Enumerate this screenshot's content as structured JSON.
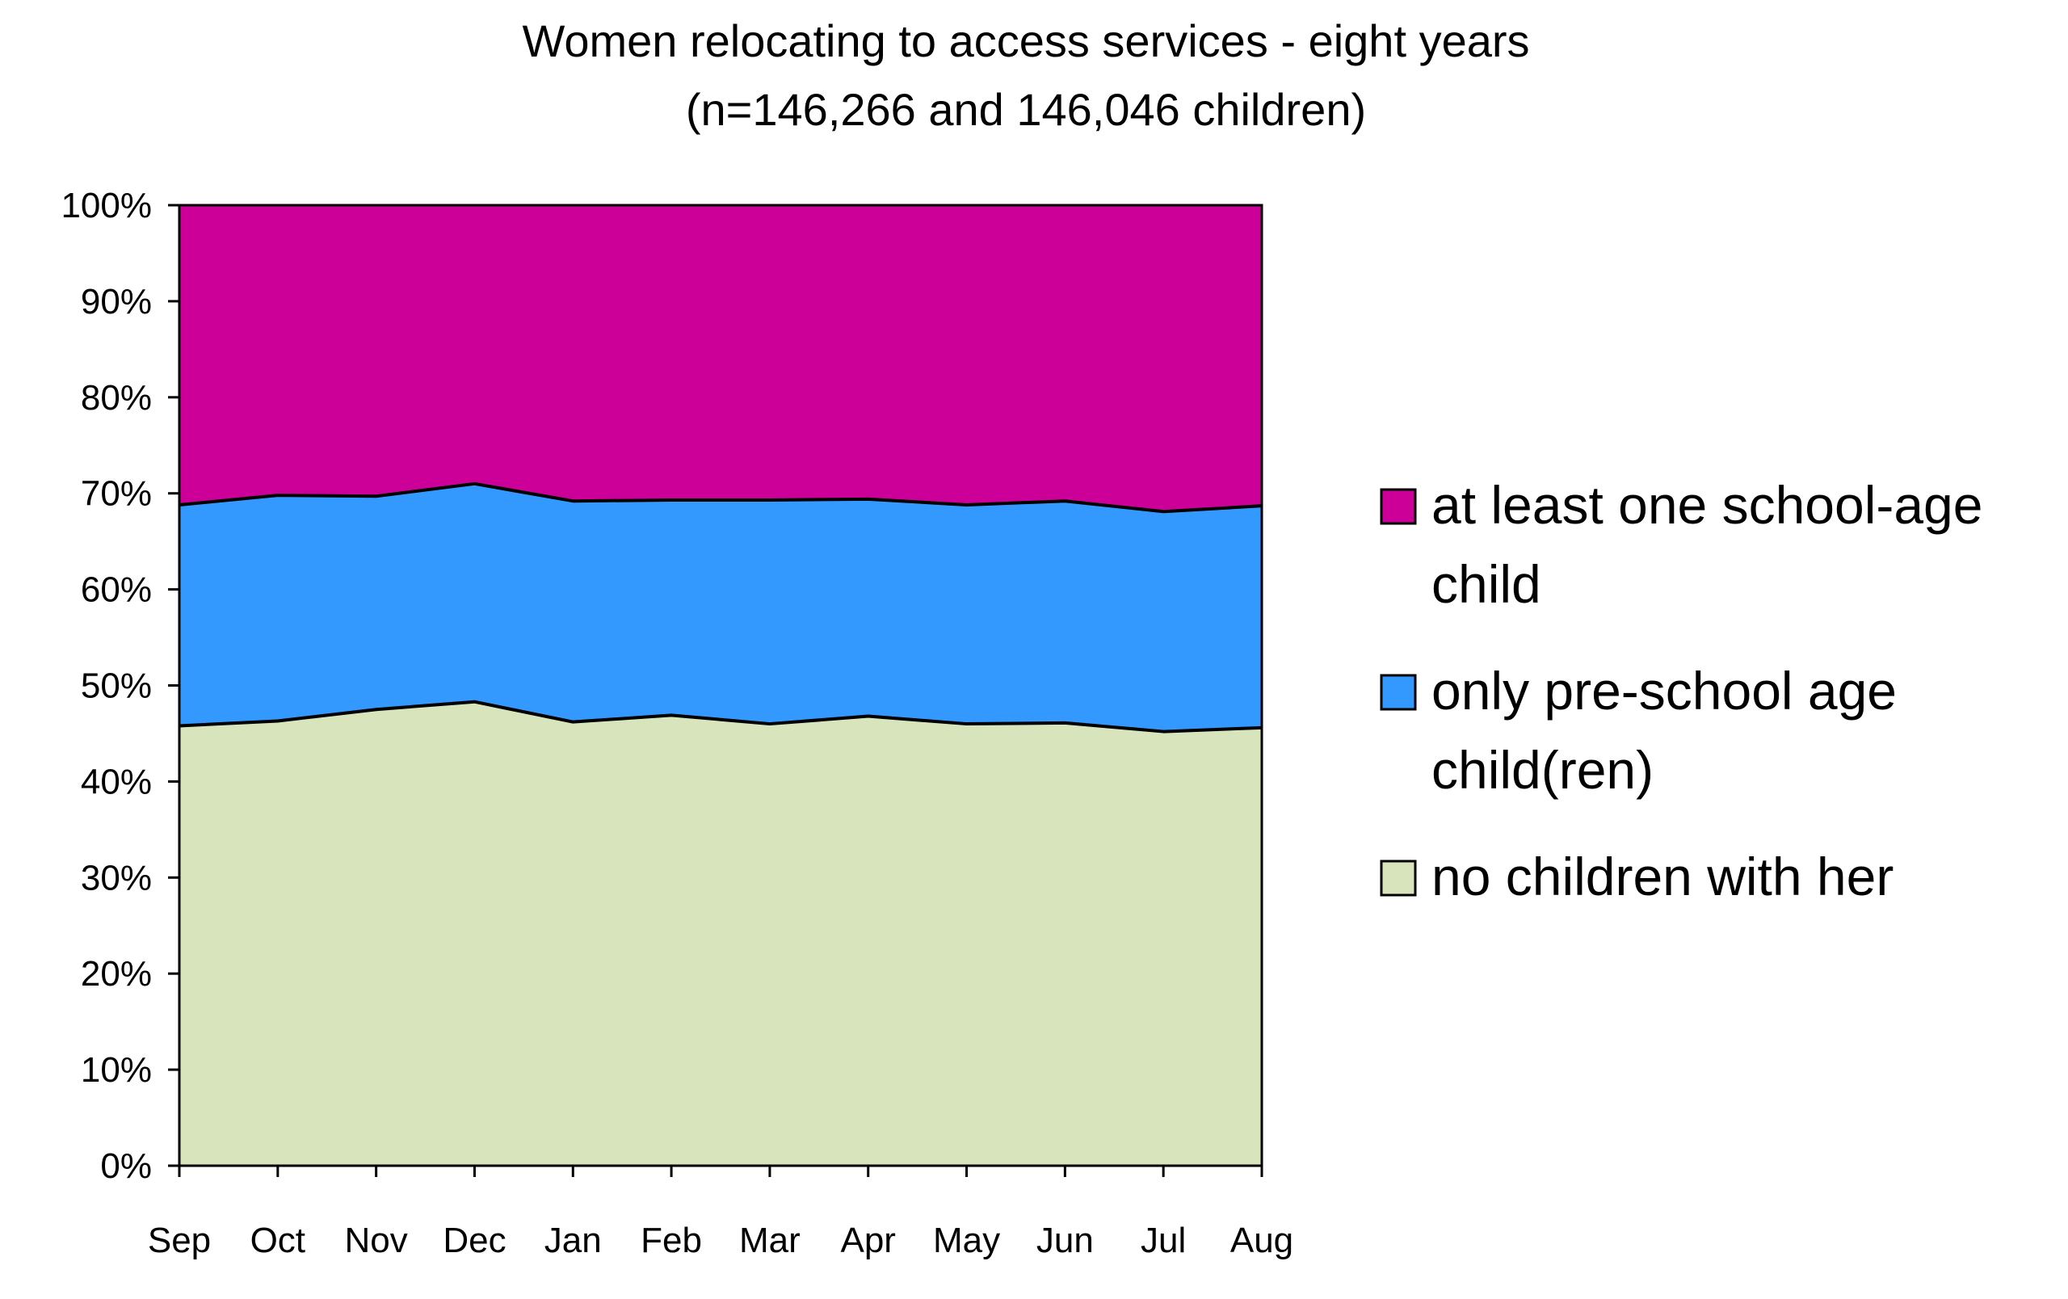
{
  "chart_data": {
    "type": "area",
    "stacked": "percent",
    "title": "Women relocating to access services - eight years",
    "subtitle": "(n=146,266 and 146,046 children)",
    "xlabel": "",
    "ylabel": "",
    "categories": [
      "Sep",
      "Oct",
      "Nov",
      "Dec",
      "Jan",
      "Feb",
      "Mar",
      "Apr",
      "May",
      "Jun",
      "Jul",
      "Aug"
    ],
    "yticks": [
      "0%",
      "10%",
      "20%",
      "30%",
      "40%",
      "50%",
      "60%",
      "70%",
      "80%",
      "90%",
      "100%"
    ],
    "ylim": [
      0,
      100
    ],
    "grid": false,
    "legend_position": "right",
    "series": [
      {
        "name": "no children with her",
        "color": "#d8e4bc",
        "values": [
          45.8,
          46.3,
          47.5,
          48.3,
          46.2,
          46.9,
          46.0,
          46.8,
          46.0,
          46.1,
          45.2,
          45.6
        ]
      },
      {
        "name": "only pre-school age child(ren)",
        "color": "#3399ff",
        "values": [
          23.0,
          23.5,
          22.2,
          22.7,
          23.0,
          22.4,
          23.3,
          22.6,
          22.8,
          23.1,
          22.9,
          23.1
        ]
      },
      {
        "name": "at least one school-age child",
        "color": "#cc0099",
        "values": [
          31.2,
          30.2,
          30.3,
          29.0,
          30.8,
          30.7,
          30.7,
          30.6,
          31.2,
          30.8,
          31.9,
          31.3
        ]
      }
    ],
    "legend": [
      {
        "lines": [
          "at least one school-age",
          "child"
        ],
        "color": "#cc0099"
      },
      {
        "lines": [
          "only pre-school age",
          "child(ren)"
        ],
        "color": "#3399ff"
      },
      {
        "lines": [
          "no children with her"
        ],
        "color": "#d8e4bc"
      }
    ]
  }
}
